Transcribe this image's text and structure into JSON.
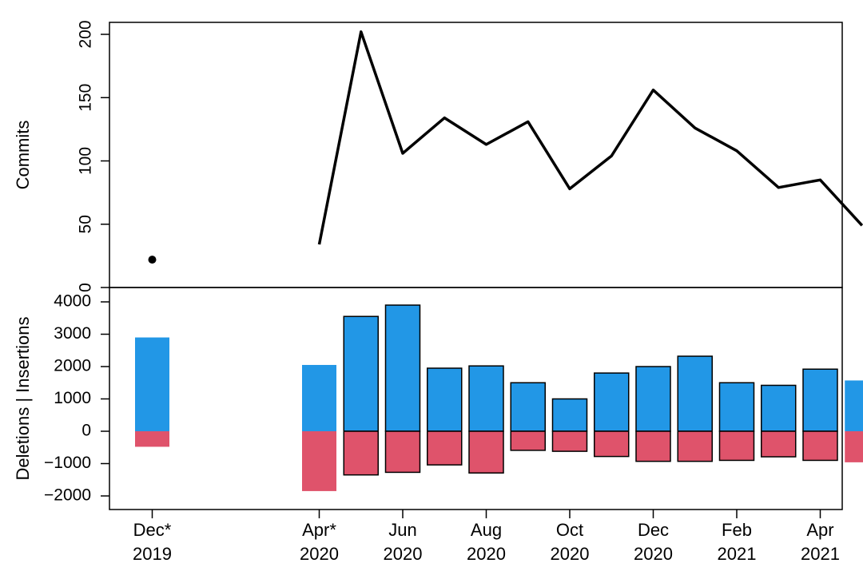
{
  "chart_data": [
    {
      "type": "line",
      "ylabel": "Commits",
      "ylim": [
        0,
        200
      ],
      "yticks": [
        0,
        50,
        100,
        150,
        200
      ],
      "series": [
        {
          "values": [
            22,
            null,
            null,
            null,
            34,
            202,
            106,
            134,
            113,
            131,
            78,
            104,
            156,
            126,
            108,
            79,
            85,
            49
          ]
        }
      ],
      "color": "#000000"
    },
    {
      "type": "bar",
      "ylabel": "Deletions | Insertions",
      "ylim": [
        -2300,
        4000
      ],
      "yticks": [
        -2000,
        -1000,
        0,
        1000,
        2000,
        3000,
        4000
      ],
      "insertions_color": "#2297E6",
      "deletions_color": "#DF536B",
      "series": [
        {
          "values": [
            2900,
            null,
            null,
            null,
            2050,
            3550,
            3900,
            1950,
            2020,
            1500,
            1000,
            1800,
            2000,
            2320,
            1500,
            1420,
            1920,
            1570
          ]
        },
        {
          "values": [
            -480,
            null,
            null,
            null,
            -1850,
            -1350,
            -1270,
            -1040,
            -1290,
            -590,
            -620,
            -780,
            -930,
            -930,
            -900,
            -790,
            -900,
            -960
          ]
        }
      ],
      "outlined": [
        false,
        null,
        null,
        null,
        false,
        true,
        true,
        true,
        true,
        true,
        true,
        true,
        true,
        true,
        true,
        true,
        true,
        false
      ]
    }
  ],
  "x_axis": {
    "month_count": 18,
    "labels": [
      {
        "index": 0,
        "month": "Dec*",
        "year": "2019"
      },
      {
        "index": 4,
        "month": "Apr*",
        "year": "2020"
      },
      {
        "index": 6,
        "month": "Jun",
        "year": "2020"
      },
      {
        "index": 8,
        "month": "Aug",
        "year": "2020"
      },
      {
        "index": 10,
        "month": "Oct",
        "year": "2020"
      },
      {
        "index": 12,
        "month": "Dec",
        "year": "2020"
      },
      {
        "index": 14,
        "month": "Feb",
        "year": "2021"
      },
      {
        "index": 16,
        "month": "Apr",
        "year": "2021"
      }
    ]
  }
}
